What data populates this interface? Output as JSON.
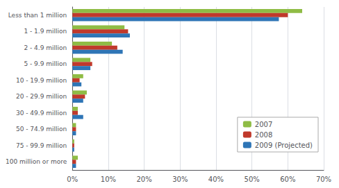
{
  "chart_data": {
    "type": "bar",
    "orientation": "horizontal",
    "categories": [
      "100 million or more",
      "75 - 99.9 million",
      "50 - 74.9 million",
      "30 - 49.9 million",
      "20 - 29.9 million",
      "10 - 19.9 million",
      "5 - 9.9 million",
      "2 - 4.9 million",
      "1 - 1.9 million",
      "Less than 1 million"
    ],
    "series": [
      {
        "name": "2007",
        "color": "#8fbc45",
        "values": [
          1.5,
          0.5,
          1.0,
          1.5,
          4.0,
          3.0,
          5.0,
          11.0,
          14.5,
          64.0
        ]
      },
      {
        "name": "2008",
        "color": "#c0392b",
        "values": [
          1.0,
          0.5,
          1.0,
          1.5,
          3.5,
          2.0,
          5.5,
          12.5,
          15.5,
          60.0
        ]
      },
      {
        "name": "2009 (Projected)",
        "color": "#2e75b6",
        "values": [
          1.0,
          0.5,
          1.0,
          3.0,
          3.0,
          2.5,
          5.0,
          14.0,
          16.0,
          57.5
        ]
      }
    ],
    "xlim": [
      0,
      70
    ],
    "xticks": [
      {
        "value": 0,
        "label": "0%"
      },
      {
        "value": 10,
        "label": "10%"
      },
      {
        "value": 20,
        "label": "20%"
      },
      {
        "value": 30,
        "label": "30%"
      },
      {
        "value": 40,
        "label": "40%"
      },
      {
        "value": 50,
        "label": "50%"
      },
      {
        "value": 60,
        "label": "60%"
      },
      {
        "value": 70,
        "label": "70%"
      }
    ],
    "grid": true,
    "legend": "lower right"
  }
}
